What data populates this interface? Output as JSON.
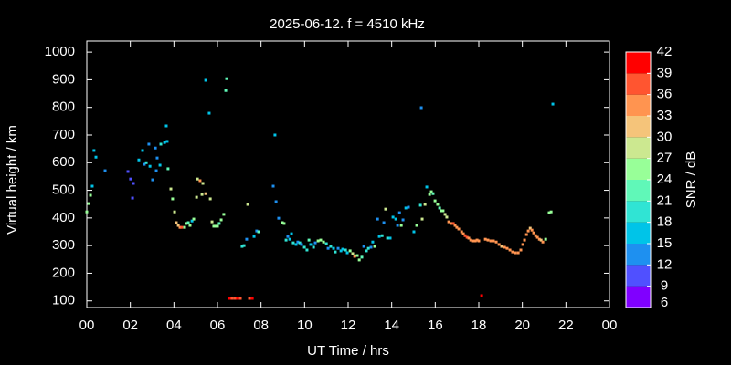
{
  "chart_data": {
    "type": "scatter",
    "title": "2025-06-12. f = 4510 kHz",
    "x_label": "UT Time / hrs",
    "y_label": "Virtual height / km",
    "xlim": [
      0,
      24
    ],
    "xticks": [
      {
        "value": 0,
        "label": "00"
      },
      {
        "value": 2,
        "label": "02"
      },
      {
        "value": 4,
        "label": "04"
      },
      {
        "value": 6,
        "label": "06"
      },
      {
        "value": 8,
        "label": "08"
      },
      10,
      12,
      14,
      16,
      18,
      20,
      22,
      {
        "value": 24,
        "label": "00"
      }
    ],
    "ylim": [
      76,
      1040
    ],
    "yticks": [
      100,
      200,
      300,
      400,
      500,
      600,
      700,
      800,
      900,
      1000
    ],
    "grid": false,
    "colorbar": {
      "label": "SNR / dB",
      "lim": [
        6,
        42
      ],
      "ticks": [
        6,
        9,
        12,
        15,
        18,
        21,
        24,
        27,
        30,
        33,
        36,
        39,
        42
      ],
      "colors": [
        "#8000ff",
        "#5050ff",
        "#1e90f0",
        "#00c4e8",
        "#30e4d4",
        "#60f8b8",
        "#98ff98",
        "#cce890",
        "#f5c47a",
        "#ff9450",
        "#ff5530",
        "#ff0000"
      ]
    },
    "x": [
      0.0,
      0.08,
      0.17,
      0.25,
      0.33,
      0.42,
      0.84,
      1.89,
      2.01,
      2.14,
      2.1,
      2.39,
      2.56,
      2.64,
      2.73,
      2.85,
      2.9,
      3.02,
      3.15,
      3.19,
      3.23,
      3.36,
      3.4,
      3.57,
      3.65,
      3.69,
      3.73,
      3.86,
      3.94,
      4.03,
      4.11,
      4.2,
      4.28,
      4.36,
      4.49,
      4.57,
      4.66,
      4.74,
      4.83,
      4.91,
      5.04,
      5.08,
      5.2,
      5.29,
      5.33,
      5.46,
      5.46,
      5.62,
      5.67,
      5.75,
      5.83,
      5.92,
      6.0,
      6.08,
      6.17,
      6.29,
      6.38,
      6.42,
      6.55,
      6.67,
      6.8,
      6.92,
      7.05,
      7.13,
      7.22,
      7.34,
      7.39,
      7.47,
      7.6,
      7.68,
      7.8,
      7.89,
      8.56,
      8.64,
      8.69,
      8.81,
      8.98,
      9.06,
      9.15,
      9.23,
      9.32,
      9.4,
      9.48,
      9.61,
      9.69,
      9.78,
      9.86,
      9.99,
      10.11,
      10.2,
      10.28,
      10.41,
      10.49,
      10.62,
      10.74,
      10.87,
      11.0,
      11.08,
      11.2,
      11.33,
      11.41,
      11.54,
      11.67,
      11.75,
      11.88,
      11.96,
      12.09,
      12.21,
      12.3,
      12.42,
      12.51,
      12.63,
      12.72,
      12.84,
      12.93,
      13.05,
      13.13,
      13.22,
      13.35,
      13.43,
      13.56,
      13.64,
      13.72,
      13.81,
      13.93,
      14.06,
      14.19,
      14.27,
      14.36,
      14.44,
      14.52,
      14.65,
      14.77,
      15.02,
      15.15,
      15.32,
      15.36,
      15.4,
      15.53,
      15.61,
      15.74,
      15.82,
      15.9,
      15.99,
      16.11,
      16.2,
      16.28,
      16.36,
      16.45,
      16.53,
      16.62,
      16.74,
      16.83,
      16.91,
      16.99,
      17.08,
      17.21,
      17.29,
      17.37,
      17.46,
      17.54,
      17.63,
      17.75,
      17.84,
      17.92,
      18.0,
      18.13,
      18.3,
      18.42,
      18.55,
      18.67,
      18.8,
      18.93,
      19.05,
      19.18,
      19.3,
      19.43,
      19.55,
      19.68,
      19.81,
      19.93,
      20.02,
      20.1,
      20.19,
      20.27,
      20.36,
      20.44,
      20.52,
      20.61,
      20.69,
      20.78,
      20.86,
      20.94,
      21.07,
      21.23,
      21.32,
      21.4
    ],
    "values": [
      422,
      452,
      482,
      515,
      644,
      620,
      571,
      568,
      541,
      525,
      472,
      610,
      644,
      594,
      600,
      667,
      587,
      538,
      653,
      571,
      617,
      591,
      667,
      673,
      733,
      677,
      578,
      505,
      469,
      422,
      383,
      373,
      366,
      366,
      366,
      380,
      383,
      373,
      389,
      396,
      475,
      541,
      535,
      485,
      525,
      898,
      488,
      779,
      469,
      386,
      370,
      370,
      370,
      380,
      393,
      413,
      861,
      904,
      109,
      109,
      109,
      109,
      109,
      297,
      300,
      323,
      449,
      109,
      109,
      333,
      353,
      350,
      515,
      700,
      459,
      399,
      383,
      380,
      320,
      333,
      323,
      343,
      310,
      304,
      313,
      310,
      304,
      294,
      284,
      320,
      304,
      294,
      310,
      317,
      320,
      313,
      307,
      290,
      297,
      290,
      277,
      290,
      281,
      287,
      284,
      274,
      281,
      271,
      261,
      264,
      248,
      258,
      297,
      281,
      290,
      294,
      313,
      297,
      396,
      333,
      336,
      383,
      432,
      327,
      327,
      403,
      396,
      373,
      419,
      373,
      393,
      436,
      439,
      350,
      373,
      446,
      799,
      396,
      449,
      512,
      485,
      495,
      488,
      462,
      449,
      436,
      426,
      426,
      413,
      403,
      386,
      380,
      380,
      373,
      366,
      360,
      350,
      343,
      336,
      330,
      327,
      320,
      317,
      317,
      320,
      317,
      119,
      323,
      320,
      317,
      317,
      313,
      304,
      297,
      294,
      290,
      284,
      277,
      274,
      274,
      284,
      304,
      320,
      340,
      353,
      363,
      356,
      346,
      336,
      330,
      323,
      320,
      313,
      323,
      419,
      422,
      812
    ],
    "color_values": [
      24,
      24,
      25,
      17,
      17,
      15,
      13,
      11,
      11,
      11,
      11,
      16,
      17,
      13,
      19,
      13,
      16,
      13,
      13,
      13,
      13,
      16,
      19,
      16,
      17,
      16,
      23,
      29,
      24,
      29,
      32,
      32,
      34,
      37,
      24,
      24,
      23,
      24,
      17,
      24,
      29,
      29,
      34,
      29,
      29,
      17,
      31,
      16,
      29,
      29,
      24,
      24,
      24,
      23,
      24,
      24,
      23,
      23,
      39,
      37,
      37,
      39,
      37,
      19,
      19,
      13,
      29,
      37,
      39,
      16,
      13,
      23,
      13,
      16,
      13,
      13,
      24,
      24,
      19,
      13,
      16,
      16,
      19,
      16,
      13,
      19,
      13,
      19,
      19,
      23,
      16,
      19,
      13,
      24,
      24,
      24,
      19,
      13,
      19,
      16,
      19,
      13,
      16,
      16,
      19,
      16,
      24,
      29,
      35,
      24,
      24,
      23,
      13,
      19,
      19,
      13,
      16,
      24,
      13,
      16,
      19,
      13,
      29,
      19,
      16,
      16,
      16,
      13,
      13,
      24,
      13,
      16,
      13,
      16,
      24,
      19,
      13,
      29,
      29,
      16,
      24,
      24,
      23,
      24,
      24,
      23,
      24,
      24,
      29,
      29,
      34,
      35,
      38,
      34,
      34,
      35,
      34,
      35,
      38,
      38,
      35,
      35,
      34,
      35,
      34,
      35,
      40,
      34,
      34,
      35,
      34,
      35,
      34,
      31,
      34,
      35,
      34,
      35,
      34,
      35,
      35,
      34,
      34,
      35,
      34,
      31,
      34,
      34,
      35,
      34,
      35,
      31,
      34,
      24,
      24,
      24,
      17
    ]
  }
}
